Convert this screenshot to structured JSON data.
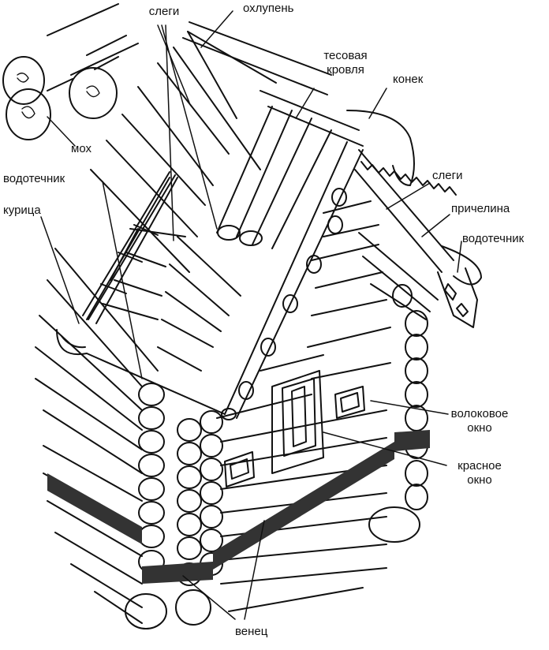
{
  "colors": {
    "ink": "#111111",
    "paper": "#ffffff",
    "moss": "#333333"
  },
  "labels": {
    "slegi_top": "слеги",
    "ohlupen": "охлупень",
    "tes_line1": "тесовая",
    "tes_line2": "кровля",
    "konek": "конек",
    "moh": "мох",
    "vodotechnik_left": "водотечник",
    "kuritsa": "курица",
    "slegi_right": "слеги",
    "prichelina": "причелина",
    "vodotechnik_right": "водотечник",
    "volok_line1": "волоковое",
    "volok_line2": "окно",
    "krasnoe_line1": "красное",
    "krasnoe_line2": "окно",
    "venets": "венец"
  }
}
